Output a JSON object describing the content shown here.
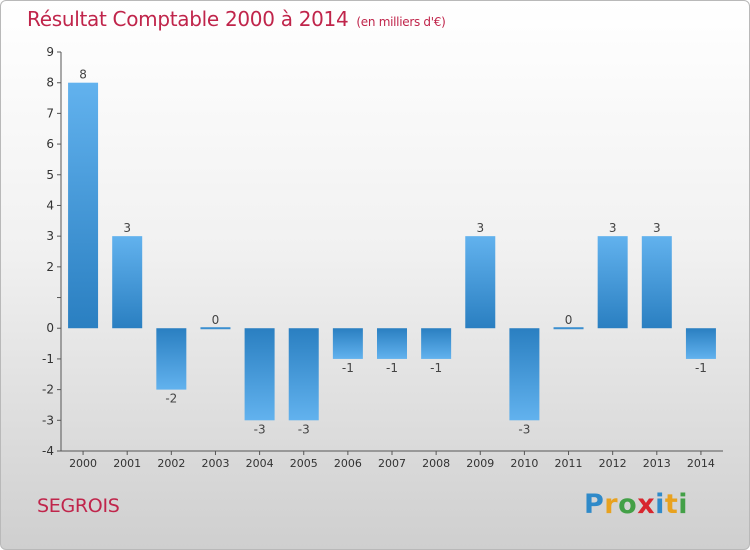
{
  "title": "Résultat Comptable 2000 à 2014",
  "unit": "(en milliers d'€)",
  "commune": "SEGROIS",
  "logo": "Proxiti",
  "colors": {
    "title": "#c0254b",
    "bar_light": "#62b2ee",
    "bar_dark": "#2a7fc1"
  },
  "chart_data": {
    "type": "bar",
    "categories": [
      "2000",
      "2001",
      "2002",
      "2003",
      "2004",
      "2005",
      "2006",
      "2007",
      "2008",
      "2009",
      "2010",
      "2011",
      "2012",
      "2013",
      "2014"
    ],
    "values": [
      8,
      3,
      -2,
      0,
      -3,
      -3,
      -1,
      -1,
      -1,
      3,
      -3,
      0,
      3,
      3,
      -1
    ],
    "ylim": [
      -4,
      9
    ],
    "yticks": [
      -4,
      -3,
      -2,
      -1,
      0,
      1,
      2,
      3,
      4,
      5,
      6,
      7,
      8,
      9
    ],
    "ytick_labels": [
      "-4",
      "-3",
      "-2",
      "-1",
      "0",
      "",
      "2",
      "3",
      "4",
      "5",
      "6",
      "7",
      "8",
      "9"
    ],
    "grid": false,
    "data_labels": true
  }
}
